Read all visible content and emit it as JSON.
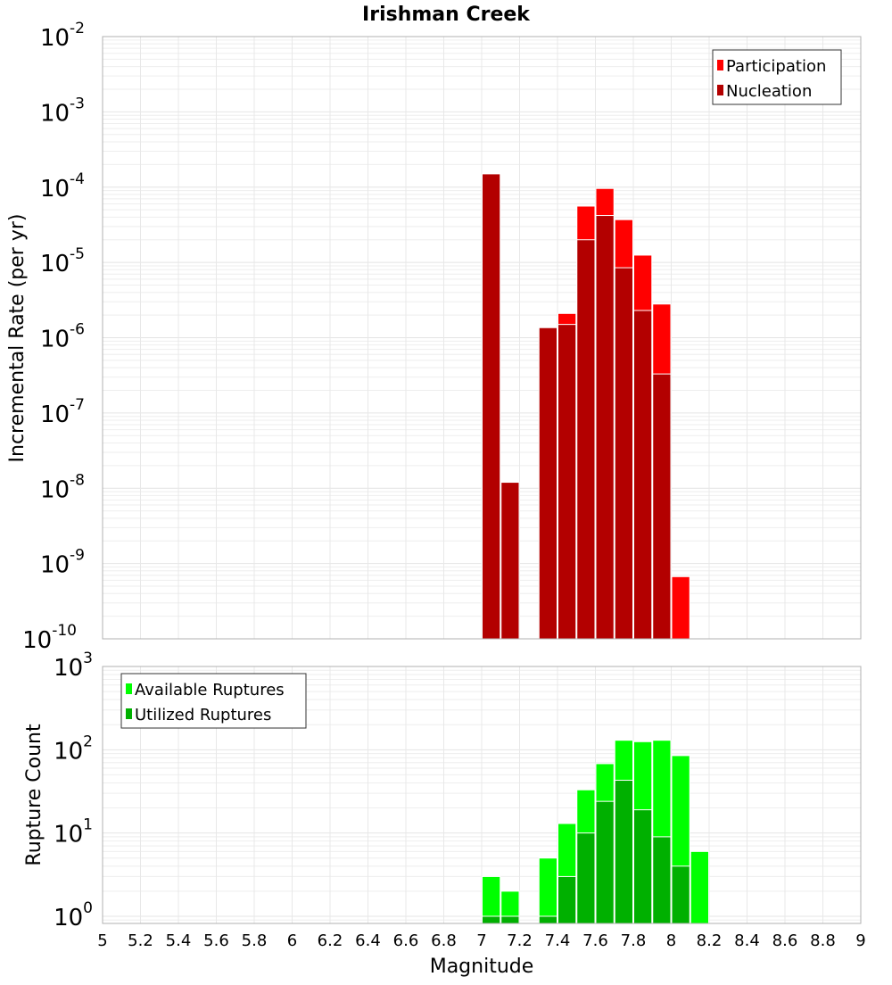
{
  "chart_data": [
    {
      "type": "bar",
      "title": "Irishman Creek",
      "xlabel": "Magnitude",
      "ylabel": "Incremental Rate (per yr)",
      "yscale": "log",
      "ylim": [
        1e-10,
        0.01
      ],
      "xlim": [
        5,
        9
      ],
      "bin_width": 0.1,
      "x": [
        7.05,
        7.15,
        7.25,
        7.35,
        7.45,
        7.55,
        7.65,
        7.75,
        7.85,
        7.95,
        8.05
      ],
      "series": [
        {
          "name": "Participation",
          "color": "#ff0000",
          "values": [
            0.00015,
            1.2e-08,
            0,
            1.36e-06,
            2.1e-06,
            5.6e-05,
            9.6e-05,
            3.7e-05,
            1.25e-05,
            2.8e-06,
            6.7e-10
          ]
        },
        {
          "name": "Nucleation",
          "color": "#b30000",
          "values": [
            0.00015,
            1.2e-08,
            0,
            1.36e-06,
            1.5e-06,
            2e-05,
            4.2e-05,
            8.5e-06,
            2.3e-06,
            3.3e-07,
            0
          ]
        }
      ],
      "legend_position": "top-right",
      "grid": true
    },
    {
      "type": "bar",
      "xlabel": "Magnitude",
      "ylabel": "Rupture Count",
      "yscale": "log",
      "ylim": [
        0.82,
        1000
      ],
      "xlim": [
        5,
        9
      ],
      "bin_width": 0.1,
      "x": [
        7.05,
        7.15,
        7.25,
        7.35,
        7.45,
        7.55,
        7.65,
        7.75,
        7.85,
        7.95,
        8.05,
        8.15
      ],
      "series": [
        {
          "name": "Available Ruptures",
          "color": "#00ff00",
          "values": [
            3,
            2,
            0,
            5,
            13,
            33,
            68,
            130,
            125,
            130,
            85,
            6
          ]
        },
        {
          "name": "Utilized Ruptures",
          "color": "#00b000",
          "values": [
            1,
            1,
            0,
            1,
            3,
            10,
            24,
            43,
            19,
            9,
            4,
            0
          ]
        }
      ],
      "legend_position": "top-left",
      "grid": true
    }
  ],
  "xticks": [
    "5",
    "5.2",
    "5.4",
    "5.6",
    "5.8",
    "6",
    "6.2",
    "6.4",
    "6.6",
    "6.8",
    "7",
    "7.2",
    "7.4",
    "7.6",
    "7.8",
    "8",
    "8.2",
    "8.4",
    "8.6",
    "8.8",
    "9"
  ],
  "top_yticks": [
    {
      "base": "10",
      "exp": "-2"
    },
    {
      "base": "10",
      "exp": "-3"
    },
    {
      "base": "10",
      "exp": "-4"
    },
    {
      "base": "10",
      "exp": "-5"
    },
    {
      "base": "10",
      "exp": "-6"
    },
    {
      "base": "10",
      "exp": "-7"
    },
    {
      "base": "10",
      "exp": "-8"
    },
    {
      "base": "10",
      "exp": "-9"
    },
    {
      "base": "10",
      "exp": "-10"
    }
  ],
  "bottom_yticks": [
    {
      "base": "10",
      "exp": "3"
    },
    {
      "base": "10",
      "exp": "2"
    },
    {
      "base": "10",
      "exp": "1"
    },
    {
      "base": "10",
      "exp": "0"
    }
  ]
}
